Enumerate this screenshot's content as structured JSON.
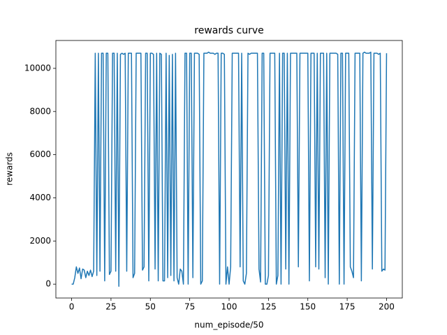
{
  "chart_data": {
    "type": "line",
    "title": "rewards curve",
    "x_label": "num_episode/50",
    "y_label": "rewards",
    "color": "#1f77b4",
    "x": [
      0,
      1,
      2,
      3,
      4,
      5,
      6,
      7,
      8,
      9,
      10,
      11,
      12,
      13,
      14,
      15,
      16,
      17,
      18,
      19,
      20,
      21,
      22,
      23,
      24,
      25,
      26,
      27,
      28,
      29,
      30,
      31,
      32,
      33,
      34,
      35,
      36,
      37,
      38,
      39,
      40,
      41,
      42,
      43,
      44,
      45,
      46,
      47,
      48,
      49,
      50,
      51,
      52,
      53,
      54,
      55,
      56,
      57,
      58,
      59,
      60,
      61,
      62,
      63,
      64,
      65,
      66,
      67,
      68,
      69,
      70,
      71,
      72,
      73,
      74,
      75,
      76,
      77,
      78,
      79,
      80,
      81,
      82,
      83,
      84,
      85,
      86,
      87,
      88,
      89,
      90,
      91,
      92,
      93,
      94,
      95,
      96,
      97,
      98,
      99,
      100,
      101,
      102,
      103,
      104,
      105,
      106,
      107,
      108,
      109,
      110,
      111,
      112,
      113,
      114,
      115,
      116,
      117,
      118,
      119,
      120,
      121,
      122,
      123,
      124,
      125,
      126,
      127,
      128,
      129,
      130,
      131,
      132,
      133,
      134,
      135,
      136,
      137,
      138,
      139,
      140,
      141,
      142,
      143,
      144,
      145,
      146,
      147,
      148,
      149,
      150,
      151,
      152,
      153,
      154,
      155,
      156,
      157,
      158,
      159,
      160,
      161,
      162,
      163,
      164,
      165,
      166,
      167,
      168,
      169,
      170,
      171,
      172,
      173,
      174,
      175,
      176,
      177,
      178,
      179,
      180,
      181,
      182,
      183,
      184,
      185,
      186,
      187,
      188,
      189,
      190,
      191,
      192,
      193,
      194,
      195,
      196,
      197,
      198,
      199,
      200
    ],
    "values": [
      0,
      0,
      300,
      800,
      500,
      750,
      250,
      700,
      650,
      300,
      600,
      400,
      650,
      350,
      600,
      10700,
      400,
      10700,
      600,
      10700,
      10700,
      150,
      10700,
      10700,
      450,
      600,
      10700,
      10700,
      600,
      10700,
      -100,
      10650,
      10700,
      10650,
      10700,
      600,
      10700,
      10700,
      10700,
      300,
      500,
      10700,
      10700,
      10700,
      10700,
      650,
      800,
      10700,
      10700,
      150,
      10700,
      10700,
      10650,
      700,
      10700,
      150,
      10700,
      10650,
      150,
      150,
      10700,
      300,
      10600,
      400,
      10650,
      150,
      10700,
      300,
      0,
      700,
      600,
      0,
      10700,
      10700,
      0,
      10700,
      10700,
      300,
      10700,
      10700,
      10700,
      10650,
      0,
      150,
      10700,
      10700,
      10700,
      10750,
      10700,
      10700,
      10700,
      10650,
      10700,
      10700,
      0,
      10700,
      10700,
      10650,
      0,
      800,
      0,
      800,
      10700,
      10700,
      10700,
      10700,
      10700,
      800,
      10700,
      150,
      0,
      500,
      10700,
      10650,
      10700,
      10700,
      10700,
      10700,
      10700,
      700,
      100,
      10700,
      10700,
      0,
      0,
      400,
      10700,
      10700,
      10700,
      10700,
      0,
      400,
      10700,
      0,
      10700,
      10700,
      700,
      10700,
      0,
      10700,
      10700,
      10700,
      10700,
      10700,
      800,
      10700,
      10700,
      10700,
      10700,
      10700,
      10700,
      150,
      10700,
      10700,
      10700,
      800,
      10700,
      700,
      10700,
      10700,
      10700,
      300,
      10700,
      0,
      10700,
      10700,
      10700,
      10700,
      10700,
      10650,
      0,
      10700,
      10700,
      0,
      10700,
      10700,
      10700,
      800,
      600,
      300,
      10700,
      10700,
      10700,
      10700,
      150,
      10700,
      10750,
      10700,
      10700,
      10700,
      10750,
      700,
      10700,
      10700,
      10700,
      10650,
      10700,
      600,
      700,
      650,
      10700
    ],
    "xlim": [
      -10,
      210
    ],
    "ylim": [
      -642,
      11292
    ],
    "xticks": [
      0,
      25,
      50,
      75,
      100,
      125,
      150,
      175,
      200
    ],
    "yticks": [
      0,
      2000,
      4000,
      6000,
      8000,
      10000
    ]
  }
}
